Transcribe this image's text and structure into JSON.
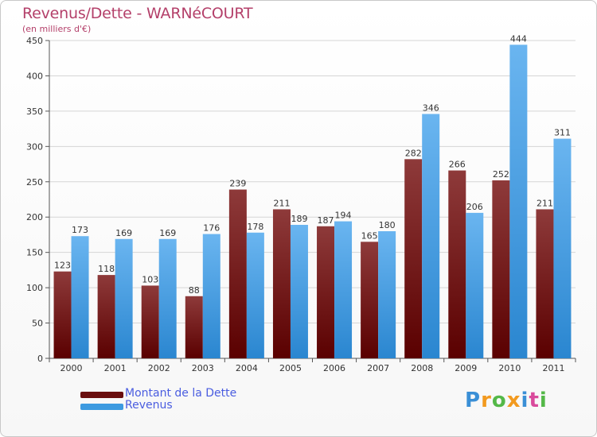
{
  "header": {
    "title": "Revenus/Dette - WARNéCOURT",
    "subtitle": "(en milliers d'€)"
  },
  "legend": {
    "debt_label": "Montant de la Dette",
    "revenue_label": "Revenus"
  },
  "logo": {
    "text": "Proxiti",
    "letters": [
      "P",
      "r",
      "o",
      "x",
      "i",
      "t",
      "i"
    ],
    "colors": [
      "#3a8fd6",
      "#f29a1f",
      "#54b848",
      "#f29a1f",
      "#3a8fd6",
      "#d94a9c",
      "#54b848"
    ]
  },
  "colors": {
    "debt_top": "#8e3a3a",
    "debt_bottom": "#5a0000",
    "revenue_top": "#6ab5f0",
    "revenue_bottom": "#2a86d0",
    "grid": "#d6d6d6",
    "axis": "#555555",
    "title": "#b4406a",
    "legend_text": "#4a5de0"
  },
  "chart_data": {
    "type": "bar",
    "title": "Revenus/Dette - WARNéCOURT",
    "subtitle": "(en milliers d'€)",
    "xlabel": "",
    "ylabel": "(en milliers d'€)",
    "ylim": [
      0,
      450
    ],
    "yticks": [
      0,
      50,
      100,
      150,
      200,
      250,
      300,
      350,
      400,
      450
    ],
    "grid": true,
    "legend_position": "bottom-left",
    "categories": [
      "2000",
      "2001",
      "2002",
      "2003",
      "2004",
      "2005",
      "2006",
      "2007",
      "2008",
      "2009",
      "2010",
      "2011"
    ],
    "series": [
      {
        "name": "Montant de la Dette",
        "values": [
          123,
          118,
          103,
          88,
          239,
          211,
          187,
          165,
          282,
          266,
          252,
          211
        ]
      },
      {
        "name": "Revenus",
        "values": [
          173,
          169,
          169,
          176,
          178,
          189,
          194,
          180,
          346,
          206,
          444,
          311
        ]
      }
    ]
  }
}
